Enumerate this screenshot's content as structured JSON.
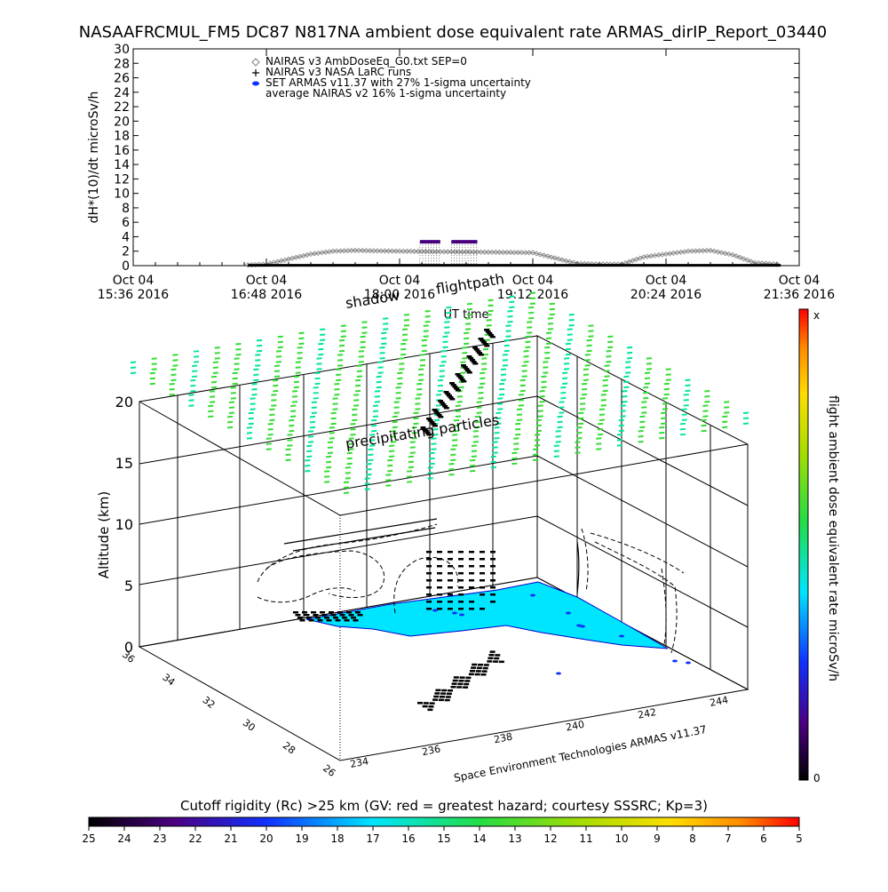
{
  "title": "NASAAFRCMUL_FM5 DC87 N817NA ambient dose equivalent rate ARMAS_dirIP_Report_03440",
  "colors": {
    "nairas_ambdose": "#808080",
    "nairas_larc": "#000000",
    "armas": "#4b0082",
    "shadow": "#00e5ff",
    "precip": "#22dd44"
  },
  "chart_data": [
    {
      "type": "line",
      "ylabel": "dH*(10)/dt microSv/h",
      "xlabel": "UT time",
      "ylim": [
        0,
        30
      ],
      "yticks": [
        0,
        2,
        4,
        6,
        8,
        10,
        12,
        14,
        16,
        18,
        20,
        22,
        24,
        26,
        28,
        30
      ],
      "xticks": [
        {
          "l1": "Oct 04",
          "l2": "15:36 2016",
          "t": 0
        },
        {
          "l1": "Oct 04",
          "l2": "16:48 2016",
          "t": 72
        },
        {
          "l1": "Oct 04",
          "l2": "18:00 2016",
          "t": 144
        },
        {
          "l1": "Oct 04",
          "l2": "19:12 2016",
          "t": 216
        },
        {
          "l1": "Oct 04",
          "l2": "20:24 2016",
          "t": 288
        },
        {
          "l1": "Oct 04",
          "l2": "21:36 2016",
          "t": 360
        }
      ],
      "legend": [
        {
          "symbol": "diamond",
          "text": "NAIRAS v3 AmbDoseEq_G0.txt SEP=0"
        },
        {
          "symbol": "plus",
          "text": "NAIRAS v3 NASA LaRC runs"
        },
        {
          "symbol": "dot",
          "text": "SET ARMAS v11.37 with 27% 1-sigma uncertainty"
        },
        {
          "symbol": "none",
          "text": "average NAIRAS v2 16% 1-sigma uncertainty"
        }
      ],
      "series": [
        {
          "name": "NAIRAS v3 AmbDoseEq_G0.txt SEP=0",
          "t": [
            62,
            72,
            96,
            108,
            120,
            144,
            180,
            216,
            240,
            252,
            264,
            276,
            300,
            312,
            324,
            336,
            348
          ],
          "values": [
            0.1,
            0.2,
            1.6,
            2.0,
            2.1,
            2.0,
            1.9,
            1.8,
            0.3,
            0.2,
            0.2,
            1.2,
            2.0,
            2.1,
            1.5,
            0.4,
            0.2
          ]
        },
        {
          "name": "NAIRAS v3 NASA LaRC runs",
          "t": [
            62,
            100,
            140,
            180,
            220,
            260,
            300,
            340,
            350
          ],
          "values": [
            0.05,
            0.05,
            0.05,
            0.05,
            0.05,
            0.05,
            0.05,
            0.05,
            0.05
          ]
        },
        {
          "name": "SET ARMAS v11.37 with 27% 1-sigma uncertainty",
          "segments": [
            [
              155,
              166
            ],
            [
              172,
              186
            ]
          ],
          "value": 3.3
        }
      ]
    },
    {
      "type": "scatter",
      "zlabel": "Altitude (km)",
      "zticks": [
        0,
        5,
        10,
        15,
        20
      ],
      "lon_ticks": [
        234,
        236,
        238,
        240,
        242,
        244
      ],
      "lat_ticks": [
        26,
        28,
        30,
        32,
        34,
        36
      ],
      "annotations": [
        "shadow",
        "flightpath",
        "precipitating particles"
      ],
      "credit": "Space Environment Technologies ARMAS v11.37",
      "colorbar": {
        "label": "flight ambient dose equivalent rate microSv/h",
        "top": "x",
        "bottom": "0"
      }
    },
    {
      "type": "heatmap",
      "label": "Cutoff rigidity (Rc) >25 km (GV: red = greatest hazard; courtesy SSSRC; Kp=3)",
      "ticks": [
        25,
        24,
        23,
        22,
        21,
        20,
        19,
        18,
        17,
        16,
        15,
        14,
        13,
        12,
        11,
        10,
        9,
        8,
        7,
        6,
        5
      ]
    }
  ]
}
